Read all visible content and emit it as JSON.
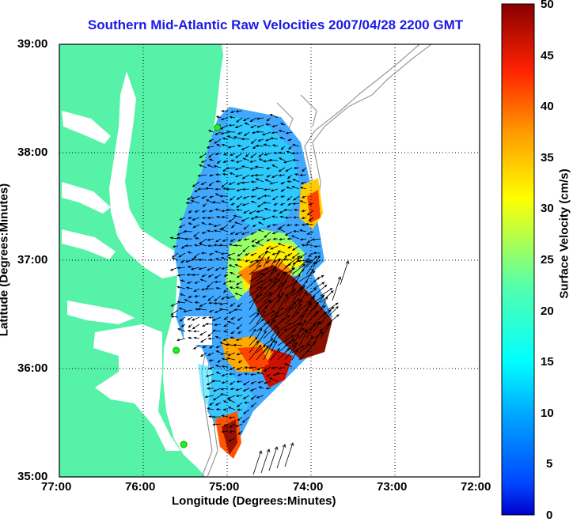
{
  "title": "Southern Mid-Atlantic Raw Velocities 2007/04/28 2200 GMT",
  "xlabel": "Longitude (Degrees:Minutes)",
  "ylabel": "Latitude (Degrees:Minutes)",
  "xticks": [
    "77:00",
    "76:00",
    "75:00",
    "74:00",
    "73:00",
    "72:00"
  ],
  "yticks": [
    "39:00",
    "38:00",
    "37:00",
    "36:00",
    "35:00"
  ],
  "colorbar": {
    "label": "Surface Velocity (cm/s)",
    "ticks": [
      "50",
      "45",
      "40",
      "35",
      "30",
      "25",
      "20",
      "15",
      "10",
      "5",
      "0"
    ],
    "range": [
      0,
      50
    ],
    "colormap": "jet"
  },
  "colors": {
    "title": "#1a1ae6",
    "land": "#55f2a8",
    "bathymetry": "#9a9a9a",
    "station": "#22ee22"
  },
  "stations": [
    {
      "lon": -75.12,
      "lat": 38.23
    },
    {
      "lon": -75.61,
      "lat": 36.17
    },
    {
      "lon": -75.52,
      "lat": 35.3
    }
  ]
}
